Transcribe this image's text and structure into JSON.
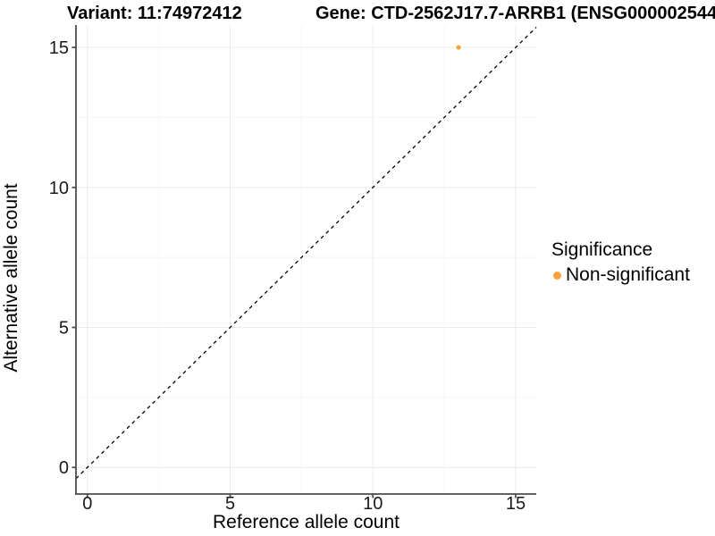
{
  "chart_data": {
    "type": "scatter",
    "title_left": "Variant: 11:74972412",
    "title_right": "Gene: CTD-2562J17.7-ARRB1 (ENSG000002544",
    "xlabel": "Reference allele count",
    "ylabel": "Alternative allele count",
    "xticks": [
      0,
      5,
      10,
      15
    ],
    "yticks": [
      0,
      5,
      10,
      15
    ],
    "xlim": [
      -0.4,
      15.72
    ],
    "ylim": [
      -0.95,
      15.8
    ],
    "grid": true,
    "points": [
      {
        "x": 13,
        "y": 15,
        "series": "Non-significant"
      }
    ],
    "identity_line": {
      "slope": 1,
      "intercept": 0,
      "style": "dashed"
    },
    "legend": {
      "title": "Significance",
      "position": "right",
      "items": [
        {
          "label": "Non-significant",
          "color": "#F9A23C"
        }
      ]
    },
    "colors": {
      "point": "#F9A23C",
      "grid_major": "#EBEBEB",
      "grid_minor": "#F5F5F5",
      "axis_line": "#4D4D4D",
      "tick_mark": "#4D4D4D",
      "tick_text": "#1A1A1A",
      "identity_line": "#000000"
    }
  }
}
